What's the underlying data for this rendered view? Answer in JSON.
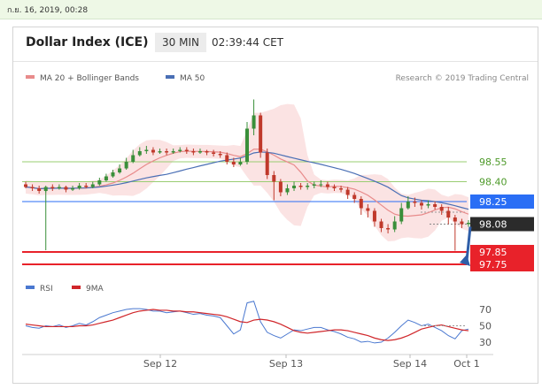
{
  "header": {
    "date_text": "ก.ย. 16, 2019, 00:28",
    "title": "Dollar Index (ICE)",
    "interval": "30 MIN",
    "time": "02:39:44 CET"
  },
  "legend": {
    "ma20_label": "MA 20 + Bollinger Bands",
    "ma50_label": "MA 50",
    "credit": "Research © 2019 Trading Central",
    "rsi_label": "RSI",
    "ma9_label": "9MA"
  },
  "colors": {
    "bull": "#3a8f3a",
    "bear": "#c0392b",
    "ma20": "#e88b8b",
    "band": "#fbe0e0",
    "ma50": "#4a6fb5",
    "level_green": "#9acd72",
    "level_blue": "#2a6ef5",
    "level_red": "#e8222a",
    "arrow": "#2f5ea8",
    "rsi": "#4a78d0",
    "rsi_ma": "#d0262a"
  },
  "chart_data": {
    "type": "candlestick",
    "x_ticks": [
      "Sep 12",
      "Sep 13",
      "Sep 14",
      "Oct 1"
    ],
    "levels": [
      {
        "value": 98.55,
        "label": "98.55",
        "style": "green-line"
      },
      {
        "value": 98.4,
        "label": "98.40",
        "style": "green-line"
      },
      {
        "value": 98.25,
        "label": "98.25",
        "style": "blue-box"
      },
      {
        "value": 98.08,
        "label": "98.08",
        "style": "current-price"
      },
      {
        "value": 97.85,
        "label": "97.85",
        "style": "red-box"
      },
      {
        "value": 97.75,
        "label": "97.75",
        "style": "red-box"
      }
    ],
    "rsi_ticks": [
      70,
      50,
      30
    ],
    "close": [
      98.36,
      98.35,
      98.33,
      98.36,
      98.35,
      98.36,
      98.34,
      98.35,
      98.37,
      98.36,
      98.38,
      98.41,
      98.44,
      98.47,
      98.5,
      98.55,
      98.6,
      98.63,
      98.64,
      98.62,
      98.63,
      98.62,
      98.63,
      98.64,
      98.63,
      98.62,
      98.63,
      98.62,
      98.61,
      98.6,
      98.55,
      98.53,
      98.55,
      98.8,
      98.9,
      98.62,
      98.45,
      98.4,
      98.32,
      98.35,
      98.37,
      98.36,
      98.37,
      98.38,
      98.38,
      98.36,
      98.35,
      98.34,
      98.3,
      98.27,
      98.2,
      98.18,
      98.1,
      98.05,
      98.04,
      98.1,
      98.2,
      98.25,
      98.24,
      98.22,
      98.23,
      98.21,
      98.18,
      98.13,
      98.1,
      98.08,
      98.09
    ],
    "open": [
      98.38,
      98.36,
      98.35,
      98.33,
      98.36,
      98.35,
      98.36,
      98.34,
      98.35,
      98.37,
      98.36,
      98.38,
      98.41,
      98.44,
      98.47,
      98.5,
      98.55,
      98.6,
      98.63,
      98.64,
      98.62,
      98.63,
      98.62,
      98.63,
      98.64,
      98.63,
      98.62,
      98.63,
      98.62,
      98.61,
      98.6,
      98.55,
      98.53,
      98.55,
      98.8,
      98.9,
      98.62,
      98.45,
      98.4,
      98.32,
      98.35,
      98.37,
      98.36,
      98.37,
      98.38,
      98.38,
      98.36,
      98.35,
      98.34,
      98.3,
      98.27,
      98.2,
      98.18,
      98.1,
      98.05,
      98.04,
      98.1,
      98.2,
      98.25,
      98.24,
      98.22,
      98.23,
      98.21,
      98.18,
      98.13,
      98.1,
      98.08
    ],
    "high": [
      98.4,
      98.38,
      98.37,
      98.37,
      98.38,
      98.38,
      98.37,
      98.37,
      98.39,
      98.39,
      98.4,
      98.43,
      98.46,
      98.49,
      98.53,
      98.58,
      98.64,
      98.66,
      98.67,
      98.66,
      98.65,
      98.65,
      98.65,
      98.66,
      98.66,
      98.65,
      98.65,
      98.64,
      98.64,
      98.63,
      98.62,
      98.58,
      98.58,
      98.85,
      99.02,
      98.92,
      98.65,
      98.48,
      98.42,
      98.38,
      98.4,
      98.39,
      98.39,
      98.4,
      98.41,
      98.4,
      98.38,
      98.37,
      98.36,
      98.32,
      98.29,
      98.23,
      98.2,
      98.12,
      98.08,
      98.14,
      98.24,
      98.29,
      98.28,
      98.26,
      98.26,
      98.25,
      98.23,
      98.21,
      98.15,
      98.12,
      98.11
    ],
    "low": [
      98.35,
      98.33,
      98.31,
      98.32,
      98.33,
      98.34,
      98.32,
      98.33,
      98.34,
      98.35,
      98.35,
      98.37,
      98.4,
      98.43,
      98.46,
      98.49,
      98.54,
      98.59,
      98.61,
      98.6,
      98.61,
      98.6,
      98.61,
      98.62,
      98.61,
      98.6,
      98.61,
      98.6,
      98.59,
      98.58,
      98.53,
      98.51,
      98.52,
      98.53,
      98.75,
      98.58,
      98.42,
      98.26,
      98.29,
      98.3,
      98.33,
      98.34,
      98.34,
      98.35,
      98.36,
      98.34,
      98.33,
      98.32,
      98.27,
      98.24,
      98.15,
      98.13,
      98.06,
      98.02,
      98.01,
      98.02,
      98.08,
      98.19,
      98.21,
      98.19,
      98.2,
      98.19,
      98.15,
      98.08,
      97.88,
      98.05,
      98.06
    ],
    "rsi": [
      50,
      48,
      47,
      50,
      49,
      51,
      48,
      50,
      53,
      51,
      55,
      60,
      63,
      66,
      68,
      70,
      71,
      71,
      70,
      68,
      68,
      66,
      67,
      68,
      66,
      64,
      65,
      63,
      62,
      60,
      50,
      40,
      45,
      78,
      80,
      55,
      42,
      38,
      35,
      40,
      45,
      44,
      46,
      48,
      48,
      45,
      43,
      40,
      36,
      34,
      30,
      31,
      29,
      30,
      35,
      42,
      50,
      57,
      54,
      50,
      52,
      48,
      44,
      38,
      34,
      44,
      46
    ],
    "rsi_ma": [
      52,
      51,
      50,
      49,
      49,
      49,
      49,
      49,
      50,
      50,
      51,
      53,
      55,
      57,
      60,
      63,
      66,
      68,
      69,
      70,
      69,
      69,
      68,
      68,
      67,
      67,
      66,
      65,
      64,
      63,
      61,
      58,
      55,
      54,
      57,
      58,
      57,
      55,
      52,
      48,
      44,
      42,
      41,
      42,
      43,
      44,
      45,
      45,
      44,
      42,
      40,
      38,
      35,
      33,
      32,
      33,
      35,
      38,
      42,
      46,
      48,
      50,
      51,
      49,
      47,
      45,
      44
    ]
  }
}
